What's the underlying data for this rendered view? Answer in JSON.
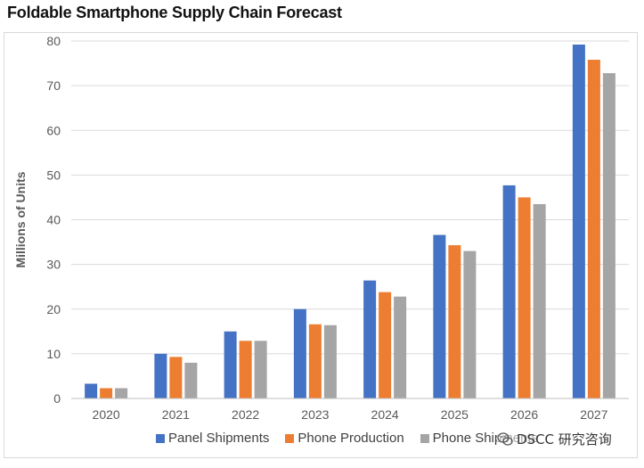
{
  "colors": {
    "panel": "#4472C4",
    "production": "#ED7D31",
    "shipments": "#A5A5A5",
    "grid": "#d9d9d9",
    "axis_text": "#595959"
  },
  "watermark": {
    "icon": "wechat-icon",
    "text": "DSCC 研究咨询"
  },
  "chart_data": {
    "type": "bar",
    "title": "Foldable Smartphone Supply Chain Forecast",
    "xlabel": "",
    "ylabel": "Millions of Units",
    "ylim": [
      0,
      80
    ],
    "yticks": [
      0,
      10,
      20,
      30,
      40,
      50,
      60,
      70,
      80
    ],
    "grid": true,
    "legend_position": "bottom",
    "categories": [
      "2020",
      "2021",
      "2022",
      "2023",
      "2024",
      "2025",
      "2026",
      "2027"
    ],
    "series": [
      {
        "name": "Panel Shipments",
        "values": [
          3.3,
          10,
          15,
          20,
          26.4,
          36.6,
          47.7,
          79.2
        ]
      },
      {
        "name": "Phone Production",
        "values": [
          2.3,
          9.3,
          12.9,
          16.6,
          23.8,
          34.3,
          45,
          75.8
        ]
      },
      {
        "name": "Phone Shipments",
        "values": [
          2.3,
          8,
          12.9,
          16.4,
          22.8,
          33,
          43.5,
          72.8
        ]
      }
    ]
  }
}
